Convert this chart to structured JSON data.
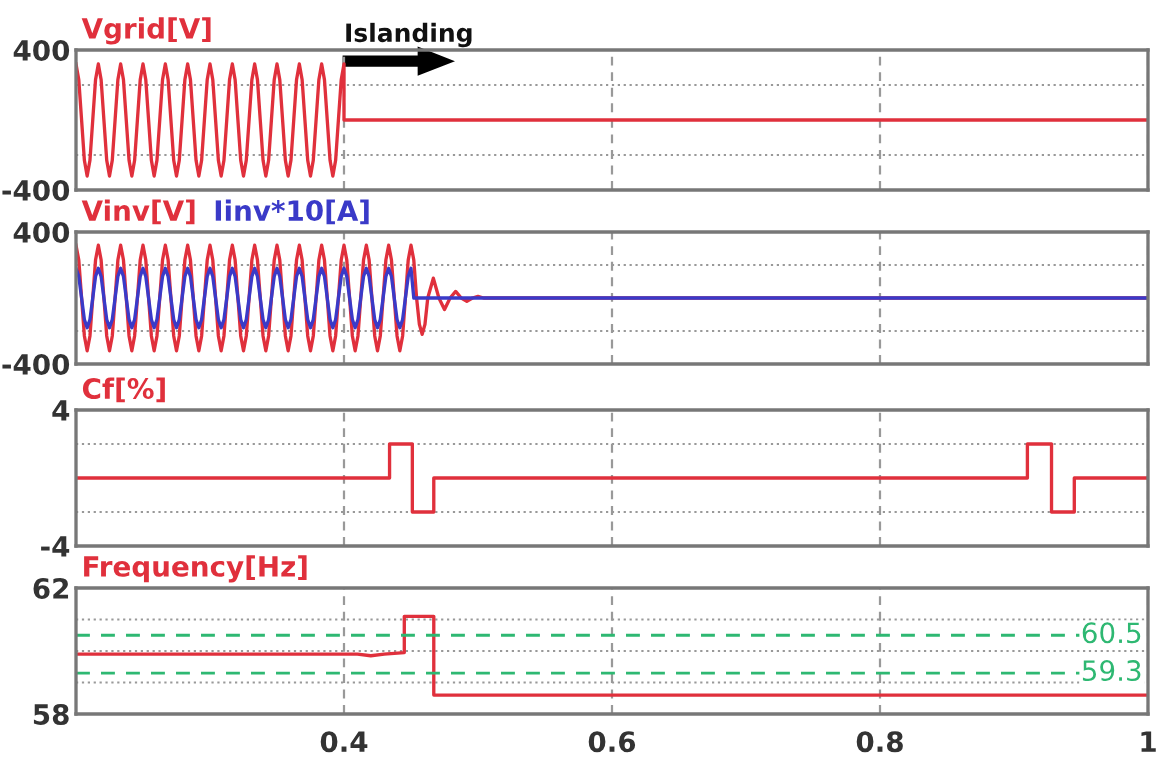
{
  "chart_data": [
    {
      "type": "line",
      "title": "Vgrid[V]",
      "xlim": [
        0.2,
        1.0
      ],
      "ylim": [
        -400,
        400
      ],
      "xticks": [
        0.4,
        0.6,
        0.8,
        1
      ],
      "yticks": [
        400,
        {
          "value": 200,
          "label": null
        },
        {
          "value": -200,
          "label": null
        },
        -400
      ],
      "grid": true,
      "tick_labels": "y",
      "legend": false,
      "annotations": [
        "Islanding"
      ],
      "x": [
        0.2,
        0.20208,
        0.20417,
        0.20625,
        0.20833,
        0.21042,
        0.2125,
        0.21458,
        0.21667,
        0.21875,
        0.22083,
        0.22292,
        0.225,
        0.22708,
        0.22917,
        0.23125,
        0.23333,
        0.23542,
        0.2375,
        0.23958,
        0.24167,
        0.24375,
        0.24583,
        0.24792,
        0.25,
        0.25208,
        0.25417,
        0.25625,
        0.25833,
        0.26042,
        0.2625,
        0.26458,
        0.26667,
        0.26875,
        0.27083,
        0.27292,
        0.275,
        0.27708,
        0.27917,
        0.28125,
        0.28333,
        0.28542,
        0.2875,
        0.28958,
        0.29167,
        0.29375,
        0.29583,
        0.29792,
        0.3,
        0.30208,
        0.30417,
        0.30625,
        0.30833,
        0.31042,
        0.3125,
        0.31458,
        0.31667,
        0.31875,
        0.32083,
        0.32292,
        0.325,
        0.32708,
        0.32917,
        0.33125,
        0.33333,
        0.33542,
        0.3375,
        0.33958,
        0.34167,
        0.34375,
        0.34583,
        0.34792,
        0.35,
        0.35208,
        0.35417,
        0.35625,
        0.35833,
        0.36042,
        0.3625,
        0.36458,
        0.36667,
        0.36875,
        0.37083,
        0.37292,
        0.375,
        0.37708,
        0.37917,
        0.38125,
        0.38333,
        0.38542,
        0.3875,
        0.38958,
        0.39167,
        0.39375,
        0.39583,
        0.39792,
        0.4,
        0.4,
        1.0
      ],
      "series": [
        {
          "color": "#e0303c",
          "values": [
            320,
            230,
            0,
            -230,
            -320,
            -230,
            0,
            230,
            320,
            230,
            0,
            -230,
            -320,
            -230,
            0,
            230,
            320,
            230,
            0,
            -230,
            -320,
            -230,
            0,
            230,
            320,
            230,
            0,
            -230,
            -320,
            -230,
            0,
            230,
            320,
            230,
            0,
            -230,
            -320,
            -230,
            0,
            230,
            320,
            230,
            0,
            -230,
            -320,
            -230,
            0,
            230,
            320,
            230,
            0,
            -230,
            -320,
            -230,
            0,
            230,
            320,
            230,
            0,
            -230,
            -320,
            -230,
            0,
            230,
            320,
            230,
            0,
            -230,
            -320,
            -230,
            0,
            230,
            320,
            230,
            0,
            -230,
            -320,
            -230,
            0,
            230,
            320,
            230,
            0,
            -230,
            -320,
            -230,
            0,
            230,
            320,
            230,
            0,
            -230,
            -320,
            -230,
            0,
            230,
            320,
            0,
            0
          ]
        }
      ]
    },
    {
      "type": "line",
      "xlim": [
        0.2,
        1.0
      ],
      "ylim": [
        -400,
        400
      ],
      "xticks": [
        0.4,
        0.6,
        0.8,
        1
      ],
      "yticks": [
        400,
        {
          "value": 200,
          "label": null
        },
        {
          "value": -200,
          "label": null
        },
        -400
      ],
      "grid": true,
      "tick_labels": "y",
      "legend": false,
      "x": [
        0.2,
        0.20208,
        0.20417,
        0.20625,
        0.20833,
        0.21042,
        0.2125,
        0.21458,
        0.21667,
        0.21875,
        0.22083,
        0.22292,
        0.225,
        0.22708,
        0.22917,
        0.23125,
        0.23333,
        0.23542,
        0.2375,
        0.23958,
        0.24167,
        0.24375,
        0.24583,
        0.24792,
        0.25,
        0.25208,
        0.25417,
        0.25625,
        0.25833,
        0.26042,
        0.2625,
        0.26458,
        0.26667,
        0.26875,
        0.27083,
        0.27292,
        0.275,
        0.27708,
        0.27917,
        0.28125,
        0.28333,
        0.28542,
        0.2875,
        0.28958,
        0.29167,
        0.29375,
        0.29583,
        0.29792,
        0.3,
        0.30208,
        0.30417,
        0.30625,
        0.30833,
        0.31042,
        0.3125,
        0.31458,
        0.31667,
        0.31875,
        0.32083,
        0.32292,
        0.325,
        0.32708,
        0.32917,
        0.33125,
        0.33333,
        0.33542,
        0.3375,
        0.33958,
        0.34167,
        0.34375,
        0.34583,
        0.34792,
        0.35,
        0.35208,
        0.35417,
        0.35625,
        0.35833,
        0.36042,
        0.3625,
        0.36458,
        0.36667,
        0.36875,
        0.37083,
        0.37292,
        0.375,
        0.37708,
        0.37917,
        0.38125,
        0.38333,
        0.38542,
        0.3875,
        0.38958,
        0.39167,
        0.39375,
        0.39583,
        0.39792,
        0.4,
        0.40208,
        0.40417,
        0.40625,
        0.40833,
        0.41042,
        0.4125,
        0.41458,
        0.41667,
        0.41875,
        0.42083,
        0.42292,
        0.425,
        0.42708,
        0.42917,
        0.43125,
        0.43333,
        0.43542,
        0.4375,
        0.43958,
        0.44167,
        0.44375,
        0.44583,
        0.44792,
        0.45,
        0.45208,
        0.45417,
        0.45625,
        0.45833,
        0.46042,
        0.4625,
        0.46667,
        0.47083,
        0.475,
        0.47917,
        0.48333,
        0.4875,
        0.49167,
        0.49583,
        0.5,
        0.50417,
        1.0
      ],
      "series": [
        {
          "name": "Vinv[V]",
          "color": "#e0303c",
          "values": [
            320,
            230,
            0,
            -230,
            -320,
            -230,
            0,
            230,
            320,
            230,
            0,
            -230,
            -320,
            -230,
            0,
            230,
            320,
            230,
            0,
            -230,
            -320,
            -230,
            0,
            230,
            320,
            230,
            0,
            -230,
            -320,
            -230,
            0,
            230,
            320,
            230,
            0,
            -230,
            -320,
            -230,
            0,
            230,
            320,
            230,
            0,
            -230,
            -320,
            -230,
            0,
            230,
            320,
            230,
            0,
            -230,
            -320,
            -230,
            0,
            230,
            320,
            230,
            0,
            -230,
            -320,
            -230,
            0,
            230,
            320,
            230,
            0,
            -230,
            -320,
            -230,
            0,
            230,
            320,
            230,
            0,
            -230,
            -320,
            -230,
            0,
            230,
            320,
            230,
            0,
            -230,
            -320,
            -230,
            0,
            230,
            320,
            230,
            0,
            -230,
            -320,
            -230,
            0,
            230,
            320,
            230,
            0,
            -230,
            -320,
            -230,
            0,
            230,
            320,
            230,
            0,
            -230,
            -320,
            -230,
            0,
            230,
            320,
            230,
            0,
            -230,
            -320,
            -230,
            0,
            230,
            320,
            230,
            0,
            -160,
            -220,
            -160,
            0,
            120,
            0,
            -70,
            0,
            40,
            0,
            -20,
            0,
            10,
            0,
            0
          ]
        },
        {
          "name": "Iinv*10[A]",
          "color": "#3a3ac8",
          "values": [
            180,
            130,
            0,
            -130,
            -180,
            -130,
            0,
            130,
            180,
            130,
            0,
            -130,
            -180,
            -130,
            0,
            130,
            180,
            130,
            0,
            -130,
            -180,
            -130,
            0,
            130,
            180,
            130,
            0,
            -130,
            -180,
            -130,
            0,
            130,
            180,
            130,
            0,
            -130,
            -180,
            -130,
            0,
            130,
            180,
            130,
            0,
            -130,
            -180,
            -130,
            0,
            130,
            180,
            130,
            0,
            -130,
            -180,
            -130,
            0,
            130,
            180,
            130,
            0,
            -130,
            -180,
            -130,
            0,
            130,
            180,
            130,
            0,
            -130,
            -180,
            -130,
            0,
            130,
            180,
            130,
            0,
            -130,
            -180,
            -130,
            0,
            130,
            180,
            130,
            0,
            -130,
            -180,
            -130,
            0,
            130,
            180,
            130,
            0,
            -130,
            -180,
            -130,
            0,
            130,
            180,
            130,
            0,
            -130,
            -180,
            -130,
            0,
            130,
            180,
            130,
            0,
            -130,
            -180,
            -130,
            0,
            130,
            180,
            130,
            0,
            -130,
            -180,
            -130,
            0,
            130,
            180,
            0,
            0,
            0,
            0,
            0,
            0,
            0,
            0,
            0,
            0,
            0,
            0,
            0,
            0,
            0,
            0,
            0
          ]
        }
      ]
    },
    {
      "type": "line",
      "title": "Cf[%]",
      "xlim": [
        0.2,
        1.0
      ],
      "ylim": [
        -4,
        4
      ],
      "xticks": [
        0.4,
        0.6,
        0.8,
        1
      ],
      "yticks": [
        4,
        {
          "value": 2,
          "label": null
        },
        {
          "value": -2,
          "label": null
        },
        -4
      ],
      "grid": true,
      "tick_labels": "y",
      "legend": false,
      "x": [
        0.2,
        0.434,
        0.434,
        0.451,
        0.451,
        0.467,
        0.467,
        0.91,
        0.91,
        0.928,
        0.928,
        0.945,
        0.945,
        1.0
      ],
      "series": [
        {
          "color": "#e0303c",
          "values": [
            0,
            0,
            2,
            2,
            -2,
            -2,
            0,
            0,
            2,
            2,
            -2,
            -2,
            0,
            0
          ]
        }
      ]
    },
    {
      "type": "line",
      "title": "Frequency[Hz]",
      "xlim": [
        0.2,
        1.0
      ],
      "ylim": [
        58,
        62
      ],
      "xticks": [
        0.4,
        0.6,
        0.8,
        1
      ],
      "yticks": [
        62,
        {
          "value": 61,
          "label": null
        },
        {
          "value": 60,
          "label": null
        },
        {
          "value": 59,
          "label": null
        },
        58
      ],
      "grid": true,
      "legend": false,
      "x": [
        0.2,
        0.41,
        0.42,
        0.43,
        0.445,
        0.445,
        0.467,
        0.467,
        1.0
      ],
      "series": [
        {
          "color": "#e0303c",
          "values": [
            59.9,
            59.9,
            59.85,
            59.9,
            59.95,
            61.1,
            61.1,
            58.6,
            58.6
          ]
        }
      ],
      "ref_lines": [
        {
          "axis": "y",
          "value": 60.5,
          "label": "60.5",
          "color": "#2eb872",
          "line_style": "dashed"
        },
        {
          "axis": "y",
          "value": 59.3,
          "label": "59.3",
          "color": "#2eb872",
          "line_style": "dashed"
        }
      ]
    }
  ]
}
